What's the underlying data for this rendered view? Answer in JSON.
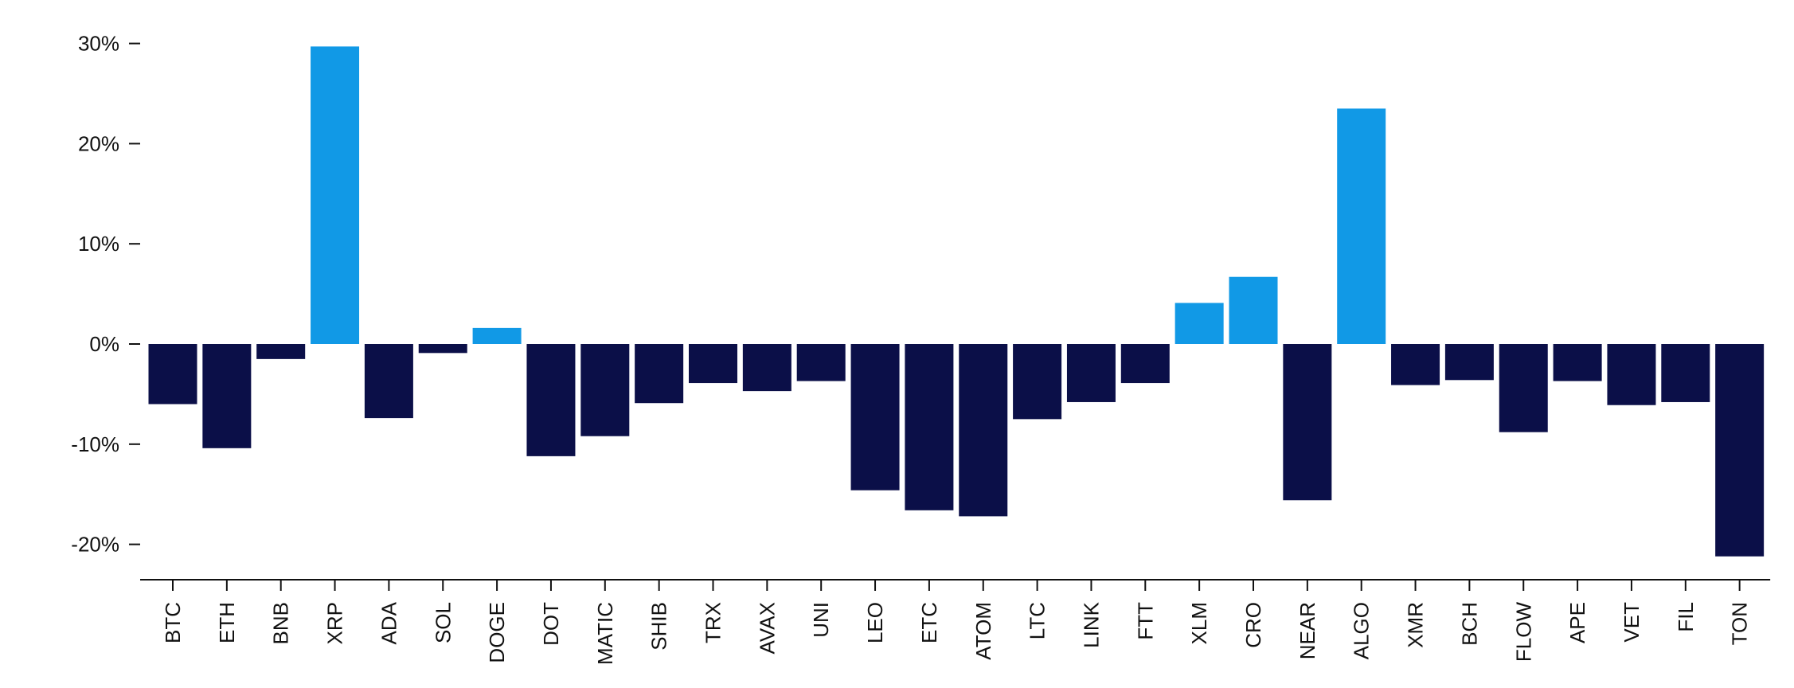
{
  "chart_data": {
    "type": "bar",
    "title": "",
    "xlabel": "",
    "ylabel": "",
    "ylim": [
      -24,
      31
    ],
    "yticks": [
      30,
      20,
      10,
      0,
      -10,
      -20
    ],
    "ytick_labels": [
      "30%",
      "20%",
      "10%",
      "0%",
      "-10%",
      "-20%"
    ],
    "categories": [
      "BTC",
      "ETH",
      "BNB",
      "XRP",
      "ADA",
      "SOL",
      "DOGE",
      "DOT",
      "MATIC",
      "SHIB",
      "TRX",
      "AVAX",
      "UNI",
      "LEO",
      "ETC",
      "ATOM",
      "LTC",
      "LINK",
      "FTT",
      "XLM",
      "CRO",
      "NEAR",
      "ALGO",
      "XMR",
      "BCH",
      "FLOW",
      "APE",
      "VET",
      "FIL",
      "TON"
    ],
    "values": [
      -6.0,
      -10.4,
      -1.5,
      29.7,
      -7.4,
      -0.9,
      1.6,
      -11.2,
      -9.2,
      -5.9,
      -3.9,
      -4.7,
      -3.7,
      -14.6,
      -16.6,
      -17.2,
      -7.5,
      -5.8,
      -3.9,
      4.1,
      6.7,
      -15.6,
      23.5,
      -4.1,
      -3.6,
      -8.8,
      -3.7,
      -6.1,
      -5.8,
      -21.2
    ],
    "grid": false,
    "legend": "none",
    "colors": {
      "positive": "#1199e6",
      "negative": "#0b0f48",
      "axis": "#111111"
    }
  }
}
